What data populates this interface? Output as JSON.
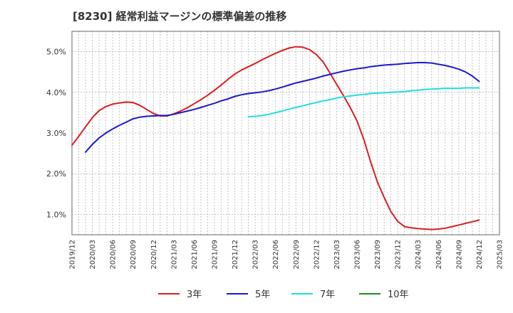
{
  "chart_data": {
    "type": "line",
    "title": "[8230]  経常利益マージンの標準偏差の推移",
    "xlabel": "",
    "ylabel": "",
    "x": [
      "2019/12",
      "2020/03",
      "2020/06",
      "2020/09",
      "2020/12",
      "2021/03",
      "2021/06",
      "2021/09",
      "2021/12",
      "2022/03",
      "2022/06",
      "2022/09",
      "2022/12",
      "2023/03",
      "2023/06",
      "2023/09",
      "2023/12",
      "2024/03",
      "2024/06",
      "2024/09",
      "2024/12",
      "2025/03"
    ],
    "ylim": [
      0.5,
      5.5
    ],
    "y_ticks": [
      "1.0%",
      "2.0%",
      "3.0%",
      "4.0%",
      "5.0%"
    ],
    "y_tick_values": [
      1.0,
      2.0,
      3.0,
      4.0,
      5.0
    ],
    "grid": true,
    "legend_position": "bottom",
    "series": [
      {
        "name": "3年",
        "color": "#dd1c1c",
        "points": [
          [
            "2019/12",
            2.7
          ],
          [
            "2020/01",
            2.92
          ],
          [
            "2020/02",
            3.15
          ],
          [
            "2020/03",
            3.38
          ],
          [
            "2020/04",
            3.55
          ],
          [
            "2020/05",
            3.65
          ],
          [
            "2020/06",
            3.71
          ],
          [
            "2020/07",
            3.74
          ],
          [
            "2020/08",
            3.76
          ],
          [
            "2020/09",
            3.75
          ],
          [
            "2020/10",
            3.68
          ],
          [
            "2020/11",
            3.58
          ],
          [
            "2020/12",
            3.48
          ],
          [
            "2021/01",
            3.42
          ],
          [
            "2021/02",
            3.42
          ],
          [
            "2021/03",
            3.47
          ],
          [
            "2021/04",
            3.54
          ],
          [
            "2021/05",
            3.62
          ],
          [
            "2021/06",
            3.72
          ],
          [
            "2021/07",
            3.82
          ],
          [
            "2021/08",
            3.93
          ],
          [
            "2021/09",
            4.05
          ],
          [
            "2021/10",
            4.18
          ],
          [
            "2021/11",
            4.32
          ],
          [
            "2021/12",
            4.45
          ],
          [
            "2022/01",
            4.55
          ],
          [
            "2022/02",
            4.63
          ],
          [
            "2022/03",
            4.71
          ],
          [
            "2022/04",
            4.8
          ],
          [
            "2022/05",
            4.88
          ],
          [
            "2022/06",
            4.96
          ],
          [
            "2022/07",
            5.03
          ],
          [
            "2022/08",
            5.09
          ],
          [
            "2022/09",
            5.12
          ],
          [
            "2022/10",
            5.11
          ],
          [
            "2022/11",
            5.05
          ],
          [
            "2022/12",
            4.93
          ],
          [
            "2023/01",
            4.75
          ],
          [
            "2023/02",
            4.48
          ],
          [
            "2023/03",
            4.2
          ],
          [
            "2023/04",
            3.92
          ],
          [
            "2023/05",
            3.63
          ],
          [
            "2023/06",
            3.3
          ],
          [
            "2023/07",
            2.85
          ],
          [
            "2023/08",
            2.3
          ],
          [
            "2023/09",
            1.8
          ],
          [
            "2023/10",
            1.42
          ],
          [
            "2023/11",
            1.07
          ],
          [
            "2023/12",
            0.83
          ],
          [
            "2024/01",
            0.7
          ],
          [
            "2024/02",
            0.67
          ],
          [
            "2024/03",
            0.65
          ],
          [
            "2024/04",
            0.64
          ],
          [
            "2024/05",
            0.63
          ],
          [
            "2024/06",
            0.64
          ],
          [
            "2024/07",
            0.66
          ],
          [
            "2024/08",
            0.7
          ],
          [
            "2024/09",
            0.74
          ],
          [
            "2024/10",
            0.78
          ],
          [
            "2024/11",
            0.82
          ],
          [
            "2024/12",
            0.86
          ]
        ]
      },
      {
        "name": "5年",
        "color": "#1a1acc",
        "points": [
          [
            "2020/02",
            2.53
          ],
          [
            "2020/03",
            2.72
          ],
          [
            "2020/04",
            2.88
          ],
          [
            "2020/05",
            3.0
          ],
          [
            "2020/06",
            3.1
          ],
          [
            "2020/07",
            3.19
          ],
          [
            "2020/08",
            3.27
          ],
          [
            "2020/09",
            3.35
          ],
          [
            "2020/10",
            3.39
          ],
          [
            "2020/11",
            3.41
          ],
          [
            "2020/12",
            3.42
          ],
          [
            "2021/01",
            3.43
          ],
          [
            "2021/02",
            3.43
          ],
          [
            "2021/03",
            3.46
          ],
          [
            "2021/04",
            3.5
          ],
          [
            "2021/05",
            3.54
          ],
          [
            "2021/06",
            3.58
          ],
          [
            "2021/07",
            3.63
          ],
          [
            "2021/08",
            3.68
          ],
          [
            "2021/09",
            3.73
          ],
          [
            "2021/10",
            3.79
          ],
          [
            "2021/11",
            3.84
          ],
          [
            "2021/12",
            3.9
          ],
          [
            "2022/01",
            3.94
          ],
          [
            "2022/02",
            3.97
          ],
          [
            "2022/03",
            3.99
          ],
          [
            "2022/04",
            4.01
          ],
          [
            "2022/05",
            4.04
          ],
          [
            "2022/06",
            4.08
          ],
          [
            "2022/07",
            4.13
          ],
          [
            "2022/08",
            4.18
          ],
          [
            "2022/09",
            4.23
          ],
          [
            "2022/10",
            4.27
          ],
          [
            "2022/11",
            4.31
          ],
          [
            "2022/12",
            4.35
          ],
          [
            "2023/01",
            4.4
          ],
          [
            "2023/02",
            4.44
          ],
          [
            "2023/03",
            4.48
          ],
          [
            "2023/04",
            4.52
          ],
          [
            "2023/05",
            4.55
          ],
          [
            "2023/06",
            4.58
          ],
          [
            "2023/07",
            4.6
          ],
          [
            "2023/08",
            4.63
          ],
          [
            "2023/09",
            4.65
          ],
          [
            "2023/10",
            4.67
          ],
          [
            "2023/11",
            4.68
          ],
          [
            "2023/12",
            4.69
          ],
          [
            "2024/01",
            4.71
          ],
          [
            "2024/02",
            4.72
          ],
          [
            "2024/03",
            4.73
          ],
          [
            "2024/04",
            4.73
          ],
          [
            "2024/05",
            4.72
          ],
          [
            "2024/06",
            4.69
          ],
          [
            "2024/07",
            4.66
          ],
          [
            "2024/08",
            4.62
          ],
          [
            "2024/09",
            4.57
          ],
          [
            "2024/10",
            4.5
          ],
          [
            "2024/11",
            4.4
          ],
          [
            "2024/12",
            4.27
          ]
        ]
      },
      {
        "name": "7年",
        "color": "#22dddd",
        "points": [
          [
            "2022/02",
            3.4
          ],
          [
            "2022/03",
            3.41
          ],
          [
            "2022/04",
            3.43
          ],
          [
            "2022/05",
            3.46
          ],
          [
            "2022/06",
            3.5
          ],
          [
            "2022/07",
            3.54
          ],
          [
            "2022/08",
            3.59
          ],
          [
            "2022/09",
            3.63
          ],
          [
            "2022/10",
            3.67
          ],
          [
            "2022/11",
            3.71
          ],
          [
            "2022/12",
            3.75
          ],
          [
            "2023/01",
            3.79
          ],
          [
            "2023/02",
            3.82
          ],
          [
            "2023/03",
            3.86
          ],
          [
            "2023/04",
            3.89
          ],
          [
            "2023/05",
            3.91
          ],
          [
            "2023/06",
            3.93
          ],
          [
            "2023/07",
            3.95
          ],
          [
            "2023/08",
            3.97
          ],
          [
            "2023/09",
            3.98
          ],
          [
            "2023/10",
            3.99
          ],
          [
            "2023/11",
            4.0
          ],
          [
            "2023/12",
            4.01
          ],
          [
            "2024/01",
            4.02
          ],
          [
            "2024/02",
            4.04
          ],
          [
            "2024/03",
            4.05
          ],
          [
            "2024/04",
            4.07
          ],
          [
            "2024/05",
            4.08
          ],
          [
            "2024/06",
            4.09
          ],
          [
            "2024/07",
            4.1
          ],
          [
            "2024/08",
            4.1
          ],
          [
            "2024/09",
            4.1
          ],
          [
            "2024/10",
            4.11
          ],
          [
            "2024/11",
            4.11
          ],
          [
            "2024/12",
            4.11
          ]
        ]
      },
      {
        "name": "10年",
        "color": "#228b22",
        "points": []
      }
    ]
  }
}
